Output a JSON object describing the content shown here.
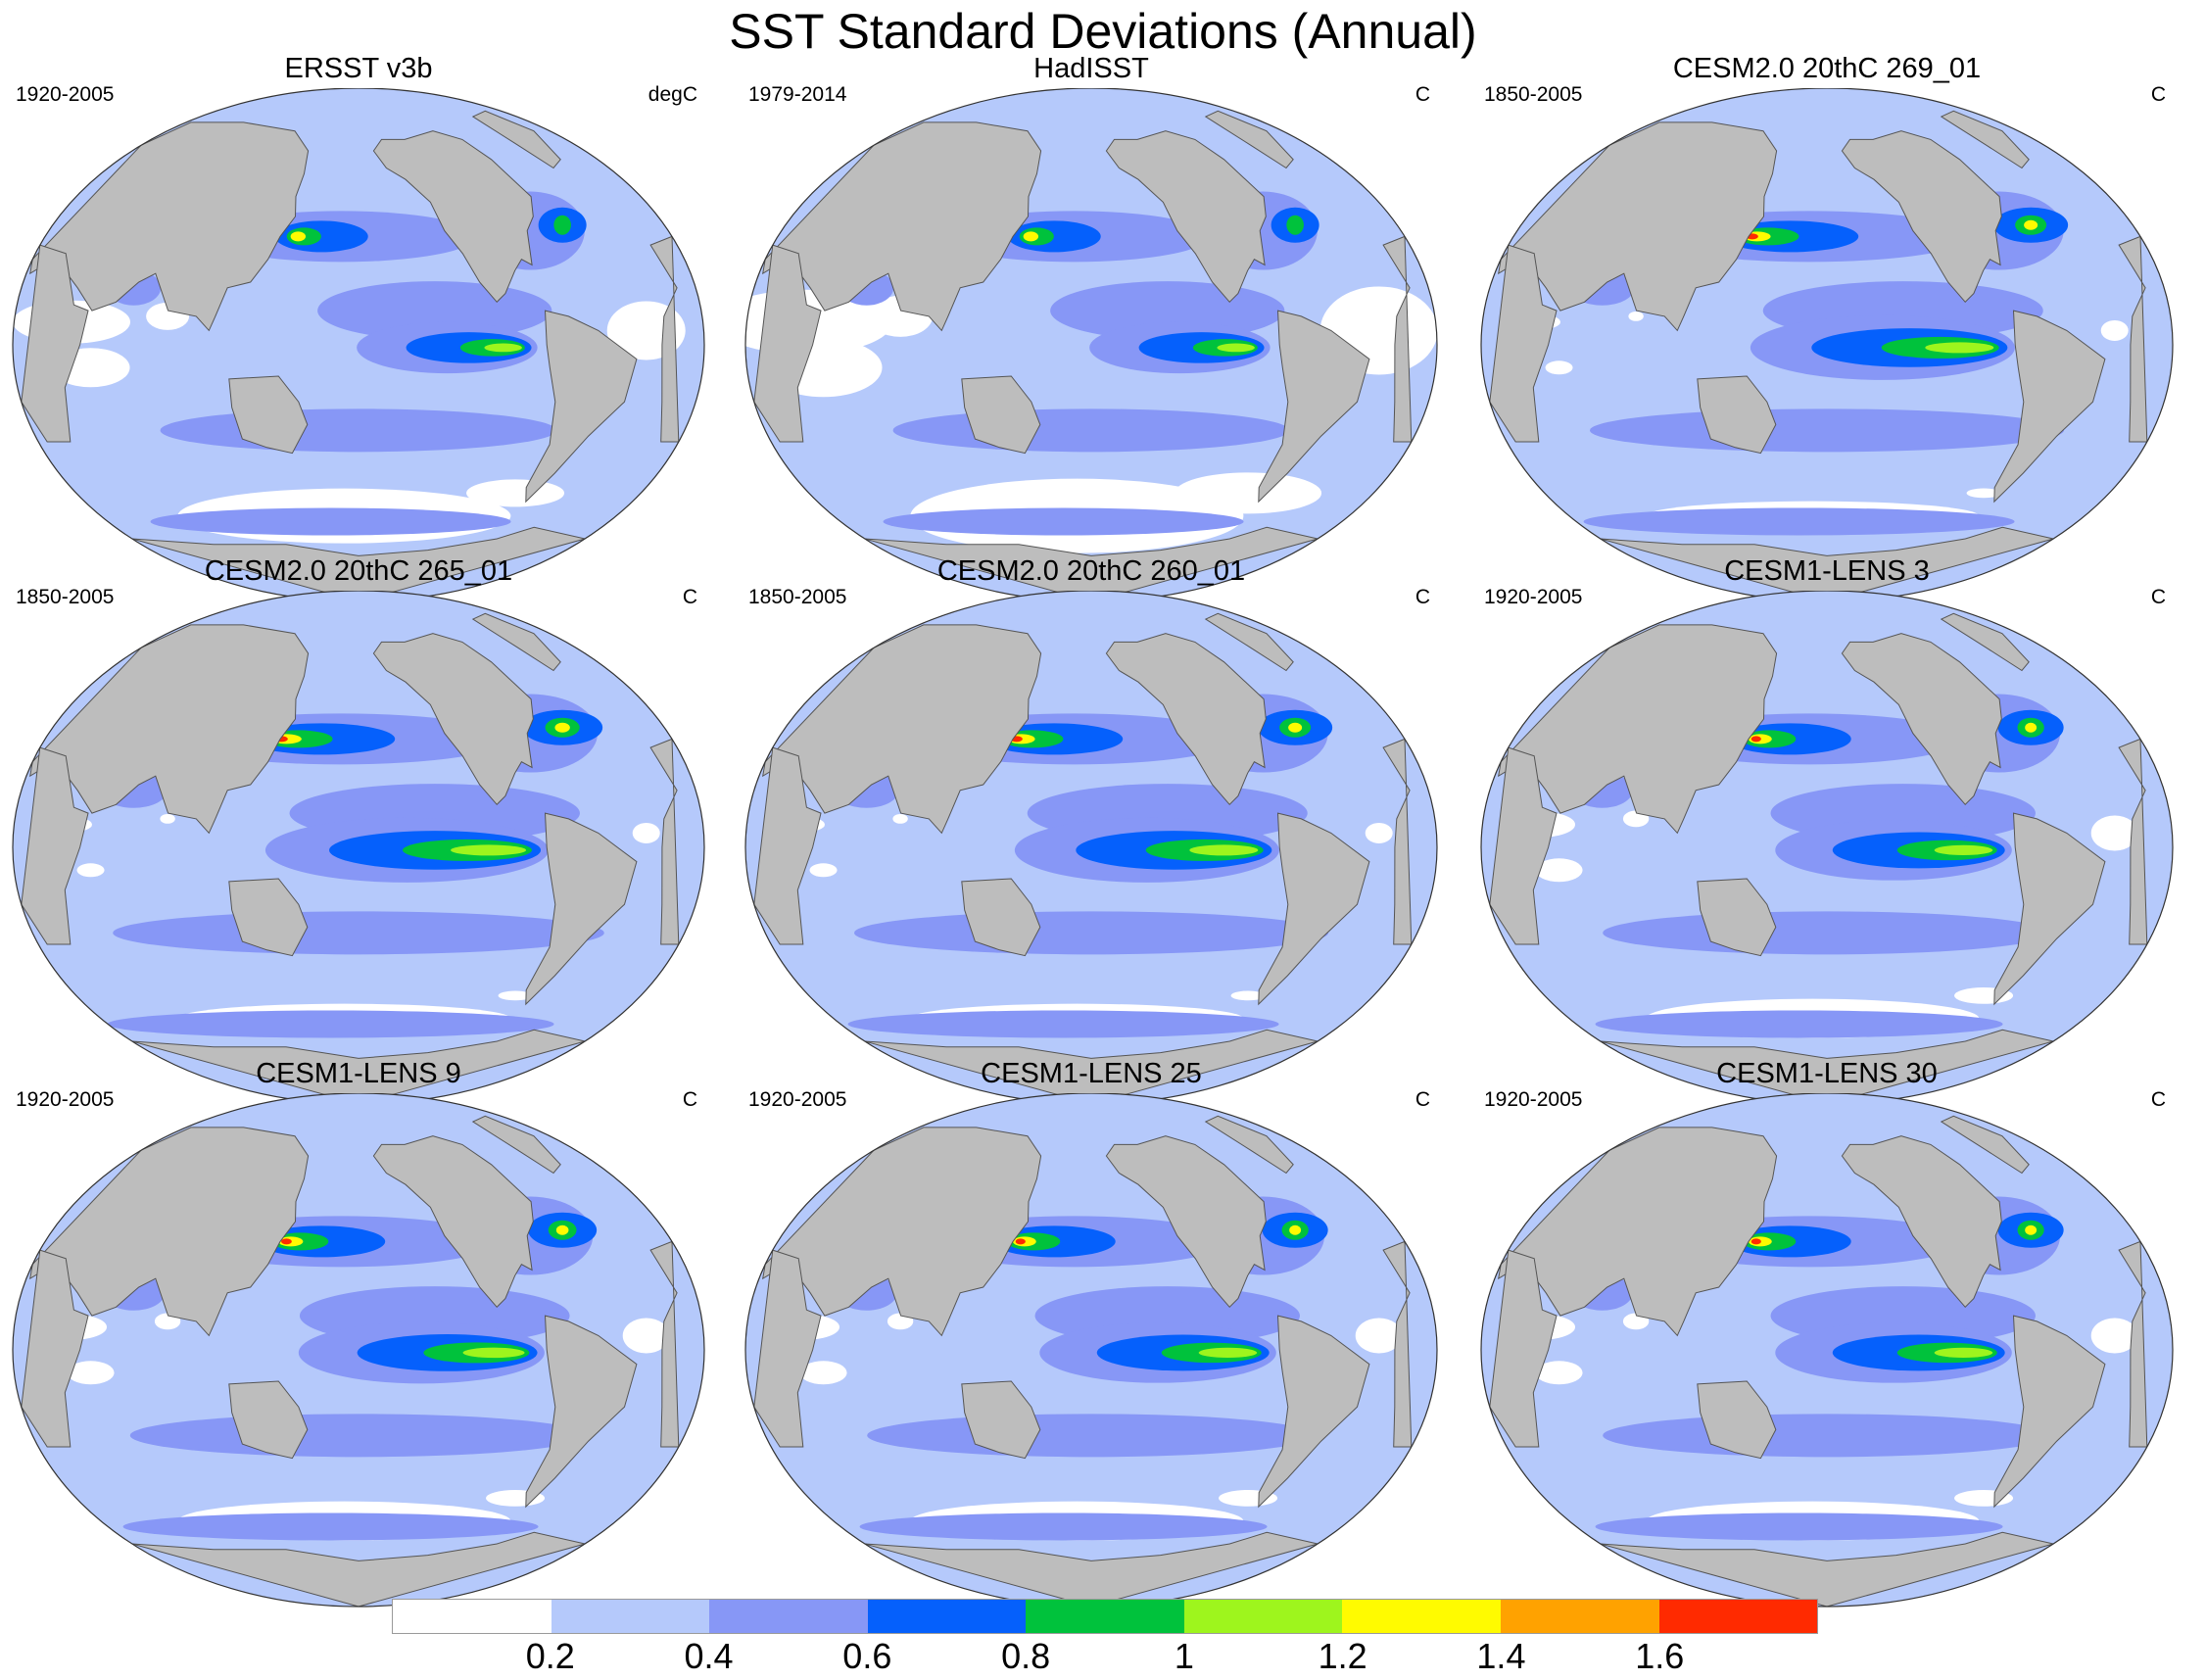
{
  "title": "SST Standard Deviations (Annual)",
  "colors": {
    "land": "#bdbdbd",
    "levels": [
      "#ffffff",
      "#b5c9fb",
      "#8797f6",
      "#0560fc",
      "#00c23c",
      "#9ef51d",
      "#fffb00",
      "#ffa200",
      "#ff2a00"
    ]
  },
  "panels": [
    {
      "title": "ERSST v3b",
      "period": "1920-2005",
      "units": "degC",
      "intensity": 0.55,
      "white": 1.0
    },
    {
      "title": "HadISST",
      "period": "1979-2014",
      "units": "C",
      "intensity": 0.55,
      "white": 1.5
    },
    {
      "title": "CESM2.0 20thC 269_01",
      "period": "1850-2005",
      "units": "C",
      "intensity": 1.0,
      "white": 0.35
    },
    {
      "title": "CESM2.0 20thC 265_01",
      "period": "1850-2005",
      "units": "C",
      "intensity": 1.1,
      "white": 0.35
    },
    {
      "title": "CESM2.0 20thC 260_01",
      "period": "1850-2005",
      "units": "C",
      "intensity": 1.0,
      "white": 0.35
    },
    {
      "title": "CESM1-LENS 3",
      "period": "1920-2005",
      "units": "C",
      "intensity": 0.85,
      "white": 0.6
    },
    {
      "title": "CESM1-LENS 9",
      "period": "1920-2005",
      "units": "C",
      "intensity": 0.9,
      "white": 0.6
    },
    {
      "title": "CESM1-LENS 25",
      "period": "1920-2005",
      "units": "C",
      "intensity": 0.85,
      "white": 0.6
    },
    {
      "title": "CESM1-LENS 30",
      "period": "1920-2005",
      "units": "C",
      "intensity": 0.85,
      "white": 0.6
    }
  ],
  "colorbar": {
    "labels": [
      "0.2",
      "0.4",
      "0.6",
      "0.8",
      "1",
      "1.2",
      "1.4",
      "1.6"
    ]
  }
}
